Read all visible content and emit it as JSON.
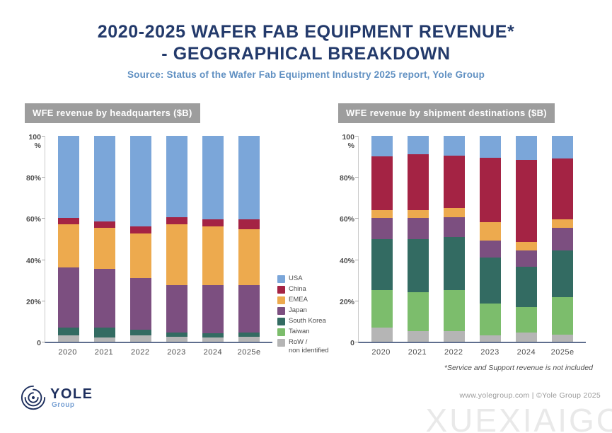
{
  "header": {
    "title_line1": "2020-2025 WAFER FAB EQUIPMENT REVENUE*",
    "title_line2": "- GEOGRAPHICAL BREAKDOWN",
    "source": "Source: Status of the Wafer Fab Equipment Industry 2025 report, Yole Group"
  },
  "colors": {
    "usa_blue": "#7ba6d9",
    "china_red": "#a42344",
    "emea_orange": "#edaa4e",
    "japan_purple": "#7c4f80",
    "south_korea_teal": "#336b62",
    "taiwan_green": "#7cbd6c",
    "row_gray": "#b5b5b5",
    "title_navy": "#233a6b",
    "source_blue": "#6090c2",
    "header_bar_gray": "#9d9d9d",
    "axis_line": "#5f6e8e"
  },
  "legend": {
    "items": [
      {
        "label": "USA",
        "color": "#7ba6d9"
      },
      {
        "label": "China",
        "color": "#a42344"
      },
      {
        "label": "EMEA",
        "color": "#edaa4e"
      },
      {
        "label": "Japan",
        "color": "#7c4f80"
      },
      {
        "label": "South Korea",
        "color": "#336b62"
      },
      {
        "label": "Taiwan",
        "color": "#7cbd6c"
      },
      {
        "label": "RoW /\nnon identified",
        "color": "#b5b5b5"
      }
    ]
  },
  "chart_data": [
    {
      "type": "bar",
      "stacked": true,
      "units": "percent of total",
      "title": "WFE revenue by headquarters ($B)",
      "categories": [
        "2020",
        "2021",
        "2022",
        "2023",
        "2024",
        "2025e"
      ],
      "stack_order": "bottom-to-top",
      "series": [
        {
          "name": "RoW / non identified",
          "color": "#b5b5b5",
          "values": [
            3,
            2,
            3,
            2.5,
            2,
            2.5
          ]
        },
        {
          "name": "Taiwan",
          "color": "#7cbd6c",
          "values": [
            0,
            0,
            0,
            0,
            0,
            0
          ]
        },
        {
          "name": "South Korea",
          "color": "#336b62",
          "values": [
            4,
            5,
            3,
            2,
            2,
            2
          ]
        },
        {
          "name": "Japan",
          "color": "#7c4f80",
          "values": [
            29,
            28.5,
            25,
            23,
            23.5,
            23
          ]
        },
        {
          "name": "EMEA",
          "color": "#edaa4e",
          "values": [
            21,
            20,
            21.5,
            29.5,
            28.5,
            27
          ]
        },
        {
          "name": "China",
          "color": "#a42344",
          "values": [
            3,
            3,
            3.5,
            3.5,
            3.5,
            5
          ]
        },
        {
          "name": "USA",
          "color": "#7ba6d9",
          "values": [
            40,
            41.5,
            44,
            39.5,
            40.5,
            40.5
          ]
        }
      ],
      "ylabel": "%",
      "ylim": [
        0,
        100
      ],
      "yticks": [
        0,
        20,
        40,
        60,
        80,
        100
      ],
      "ytick_labels": [
        "0",
        "20%",
        "40%",
        "60%",
        "80%",
        "100\n%"
      ],
      "grid": false,
      "legend_position": "right of chart (shared)"
    },
    {
      "type": "bar",
      "stacked": true,
      "units": "percent of total",
      "title": "WFE revenue by shipment destinations ($B)",
      "categories": [
        "2020",
        "2021",
        "2022",
        "2023",
        "2024",
        "2025e"
      ],
      "stack_order": "bottom-to-top",
      "series": [
        {
          "name": "RoW / non identified",
          "color": "#b5b5b5",
          "values": [
            7,
            5,
            5,
            3,
            4.5,
            3.5
          ]
        },
        {
          "name": "Taiwan",
          "color": "#7cbd6c",
          "values": [
            18,
            19,
            20,
            15.5,
            12.5,
            18
          ]
        },
        {
          "name": "South Korea",
          "color": "#336b62",
          "values": [
            25,
            26,
            26,
            22.5,
            19.5,
            23
          ]
        },
        {
          "name": "Japan",
          "color": "#7c4f80",
          "values": [
            10,
            10,
            9.5,
            8,
            8,
            11
          ]
        },
        {
          "name": "EMEA",
          "color": "#edaa4e",
          "values": [
            4,
            4,
            4.5,
            9,
            4,
            4
          ]
        },
        {
          "name": "China",
          "color": "#a42344",
          "values": [
            26,
            27,
            25.5,
            31.5,
            40,
            29.5
          ]
        },
        {
          "name": "USA",
          "color": "#7ba6d9",
          "values": [
            10,
            9,
            9.5,
            10.5,
            11.5,
            11
          ]
        }
      ],
      "ylabel": "%",
      "ylim": [
        0,
        100
      ],
      "yticks": [
        0,
        20,
        40,
        60,
        80,
        100
      ],
      "ytick_labels": [
        "0",
        "20%",
        "40%",
        "60%",
        "80%",
        "100\n%"
      ],
      "grid": false,
      "legend_position": "right of chart (shared)"
    }
  ],
  "footnote": "*Service and Support revenue is not included",
  "footer": {
    "logo_name": "YOLE",
    "logo_sub": "Group",
    "credit": "www.yolegroup.com | ©Yole Group 2025"
  },
  "watermark": "XUEXIAIGC"
}
